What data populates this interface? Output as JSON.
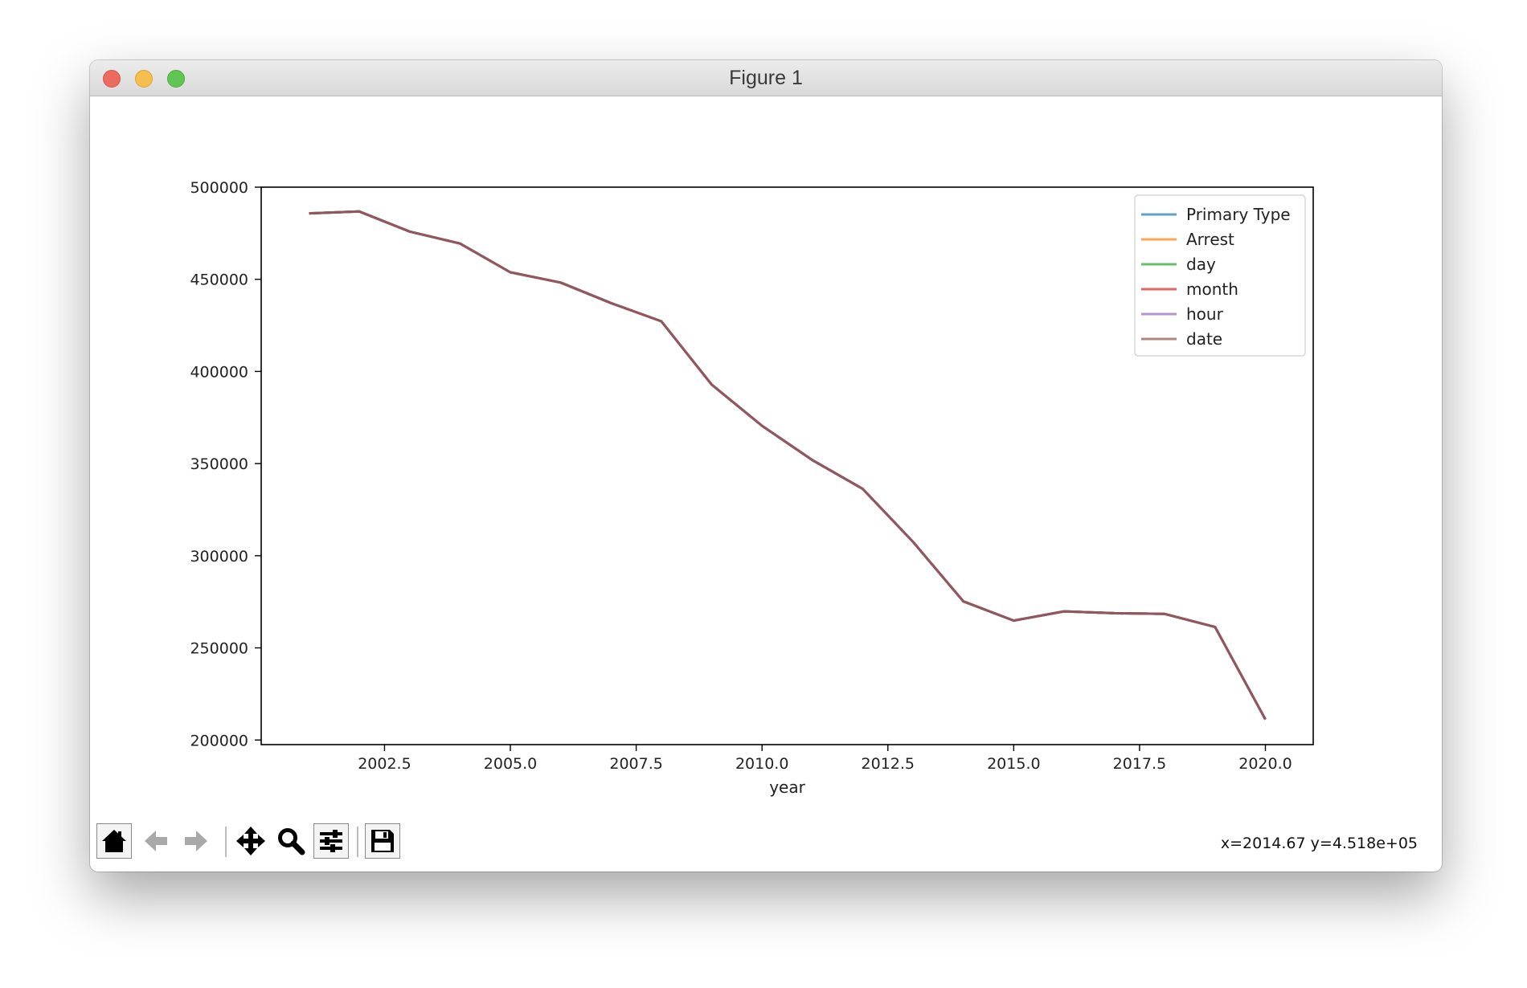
{
  "window": {
    "title": "Figure 1"
  },
  "toolbar": {
    "buttons": [
      {
        "name": "home-button",
        "icon": "home-icon"
      },
      {
        "name": "back-button",
        "icon": "arrow-left-icon"
      },
      {
        "name": "forward-button",
        "icon": "arrow-right-icon"
      },
      {
        "name": "pan-button",
        "icon": "move-icon"
      },
      {
        "name": "zoom-button",
        "icon": "magnifier-icon"
      },
      {
        "name": "configure-subplots-button",
        "icon": "sliders-icon"
      },
      {
        "name": "save-button",
        "icon": "floppy-disk-icon"
      }
    ]
  },
  "status": {
    "coords": "x=2014.67 y=4.518e+05"
  },
  "chart_data": {
    "type": "line",
    "title": "",
    "xlabel": "year",
    "ylabel": "",
    "xlim": [
      2000.05,
      2020.95
    ],
    "ylim": [
      197500,
      500000
    ],
    "xticks": [
      2002.5,
      2005.0,
      2007.5,
      2010.0,
      2012.5,
      2015.0,
      2017.5,
      2020.0
    ],
    "xtick_labels": [
      "2002.5",
      "2005.0",
      "2007.5",
      "2010.0",
      "2012.5",
      "2015.0",
      "2017.5",
      "2020.0"
    ],
    "yticks": [
      200000,
      250000,
      300000,
      350000,
      400000,
      450000,
      500000
    ],
    "ytick_labels": [
      "200000",
      "250000",
      "300000",
      "350000",
      "400000",
      "450000",
      "500000"
    ],
    "grid": false,
    "legend": "top-right",
    "x": [
      2001,
      2002,
      2003,
      2004,
      2005,
      2006,
      2007,
      2008,
      2009,
      2010,
      2011,
      2012,
      2013,
      2014,
      2015,
      2016,
      2017,
      2018,
      2019,
      2020
    ],
    "series": [
      {
        "name": "Primary Type",
        "color": "#1f77b4",
        "values": [
          485800,
          486800,
          475900,
          469400,
          453800,
          448200,
          437100,
          427200,
          392800,
          370500,
          351900,
          336300,
          307500,
          275200,
          264800,
          269800,
          268800,
          268400,
          261300,
          211200
        ]
      },
      {
        "name": "Arrest",
        "color": "#ff7f0e",
        "values": [
          485800,
          486800,
          475900,
          469400,
          453800,
          448200,
          437100,
          427200,
          392800,
          370500,
          351900,
          336300,
          307500,
          275200,
          264800,
          269800,
          268800,
          268400,
          261300,
          211200
        ]
      },
      {
        "name": "day",
        "color": "#2ca02c",
        "values": [
          485800,
          486800,
          475900,
          469400,
          453800,
          448200,
          437100,
          427200,
          392800,
          370500,
          351900,
          336300,
          307500,
          275200,
          264800,
          269800,
          268800,
          268400,
          261300,
          211200
        ]
      },
      {
        "name": "month",
        "color": "#d62728",
        "values": [
          485800,
          486800,
          475900,
          469400,
          453800,
          448200,
          437100,
          427200,
          392800,
          370500,
          351900,
          336300,
          307500,
          275200,
          264800,
          269800,
          268800,
          268400,
          261300,
          211200
        ]
      },
      {
        "name": "hour",
        "color": "#9467bd",
        "values": [
          485800,
          486800,
          475900,
          469400,
          453800,
          448200,
          437100,
          427200,
          392800,
          370500,
          351900,
          336300,
          307500,
          275200,
          264800,
          269800,
          268800,
          268400,
          261300,
          211200
        ]
      },
      {
        "name": "date",
        "color": "#8c564b",
        "values": [
          485800,
          486800,
          475900,
          469400,
          453800,
          448200,
          437100,
          427200,
          392800,
          370500,
          351900,
          336300,
          307500,
          275200,
          264800,
          269800,
          268800,
          268400,
          261300,
          211200
        ]
      }
    ]
  }
}
